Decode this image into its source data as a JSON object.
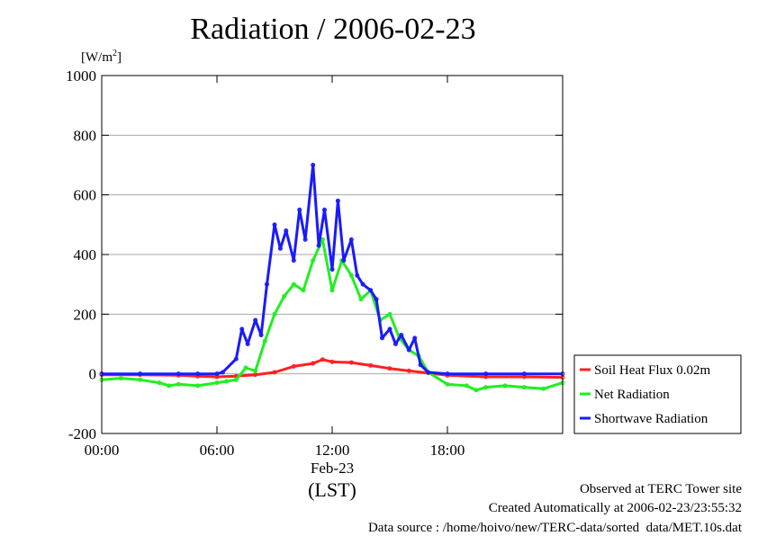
{
  "title": "Radiation / 2006-02-23",
  "unit_main": "[W/m",
  "unit_sup": "2",
  "unit_end": "]",
  "footer": {
    "line1": "Observed at TERC Tower site",
    "line2": "Created Automatically at 2006-02-23/23:55:32",
    "line3": "Data source : /home/hoivo/new/TERC-data/sorted  data/MET.10s.dat"
  },
  "colors": {
    "soil": "#ff2020",
    "net": "#22ee22",
    "shortwave": "#1a1aff",
    "grid": "#aaaaaa"
  },
  "chart_data": {
    "type": "line",
    "title": "Radiation / 2006-02-23",
    "xlabel": "(LST)",
    "ylabel": "[W/m2]",
    "xlim": [
      0,
      24
    ],
    "ylim": [
      -200,
      1000
    ],
    "yticks": [
      -200,
      0,
      200,
      400,
      600,
      800,
      1000
    ],
    "xticks": [
      {
        "x": 0,
        "label": "00:00"
      },
      {
        "x": 6,
        "label": "06:00"
      },
      {
        "x": 12,
        "label": "12:00",
        "sublabel": "Feb-23"
      },
      {
        "x": 18,
        "label": "18:00"
      }
    ],
    "grid": true,
    "legend_position": "lower-right-outside",
    "series": [
      {
        "name": "Soil Heat Flux 0.02m",
        "color": "#ff2020",
        "x": [
          0,
          2,
          4,
          5,
          6,
          7,
          8,
          9,
          10,
          11,
          11.5,
          12,
          13,
          14,
          15,
          16,
          17,
          18,
          20,
          22,
          24
        ],
        "y": [
          -3,
          -3,
          -5,
          -8,
          -10,
          -8,
          -3,
          5,
          25,
          35,
          48,
          40,
          38,
          28,
          18,
          10,
          3,
          -5,
          -10,
          -10,
          -12
        ]
      },
      {
        "name": "Net Radiation",
        "color": "#22ee22",
        "x": [
          0,
          1,
          2,
          3,
          3.5,
          4,
          5,
          6,
          6.5,
          7,
          7.5,
          8,
          8.5,
          9,
          9.5,
          10,
          10.5,
          11,
          11.5,
          12,
          12.5,
          13,
          13.5,
          14,
          14.5,
          15,
          15.5,
          16,
          16.5,
          17,
          18,
          19,
          19.5,
          20,
          21,
          22,
          23,
          24
        ],
        "y": [
          -20,
          -15,
          -20,
          -30,
          -40,
          -35,
          -40,
          -30,
          -25,
          -20,
          20,
          10,
          110,
          200,
          260,
          300,
          280,
          380,
          450,
          280,
          380,
          330,
          250,
          280,
          180,
          200,
          120,
          80,
          60,
          5,
          -35,
          -40,
          -55,
          -45,
          -40,
          -45,
          -50,
          -30
        ]
      },
      {
        "name": "Shortwave Radiation",
        "color": "#1a1aff",
        "x": [
          0,
          2,
          4,
          5,
          6,
          6.3,
          7,
          7.3,
          7.6,
          8,
          8.3,
          8.6,
          9,
          9.3,
          9.6,
          10,
          10.3,
          10.6,
          11,
          11.3,
          11.6,
          12,
          12.3,
          12.6,
          13,
          13.3,
          13.6,
          14,
          14.3,
          14.6,
          15,
          15.3,
          15.6,
          16,
          16.3,
          16.6,
          17,
          18,
          20,
          22,
          24
        ],
        "y": [
          0,
          0,
          0,
          0,
          0,
          5,
          50,
          150,
          100,
          180,
          130,
          300,
          500,
          420,
          480,
          380,
          550,
          450,
          700,
          430,
          550,
          350,
          580,
          380,
          450,
          330,
          300,
          280,
          250,
          120,
          150,
          100,
          130,
          80,
          120,
          30,
          5,
          0,
          0,
          0,
          0
        ]
      }
    ]
  }
}
